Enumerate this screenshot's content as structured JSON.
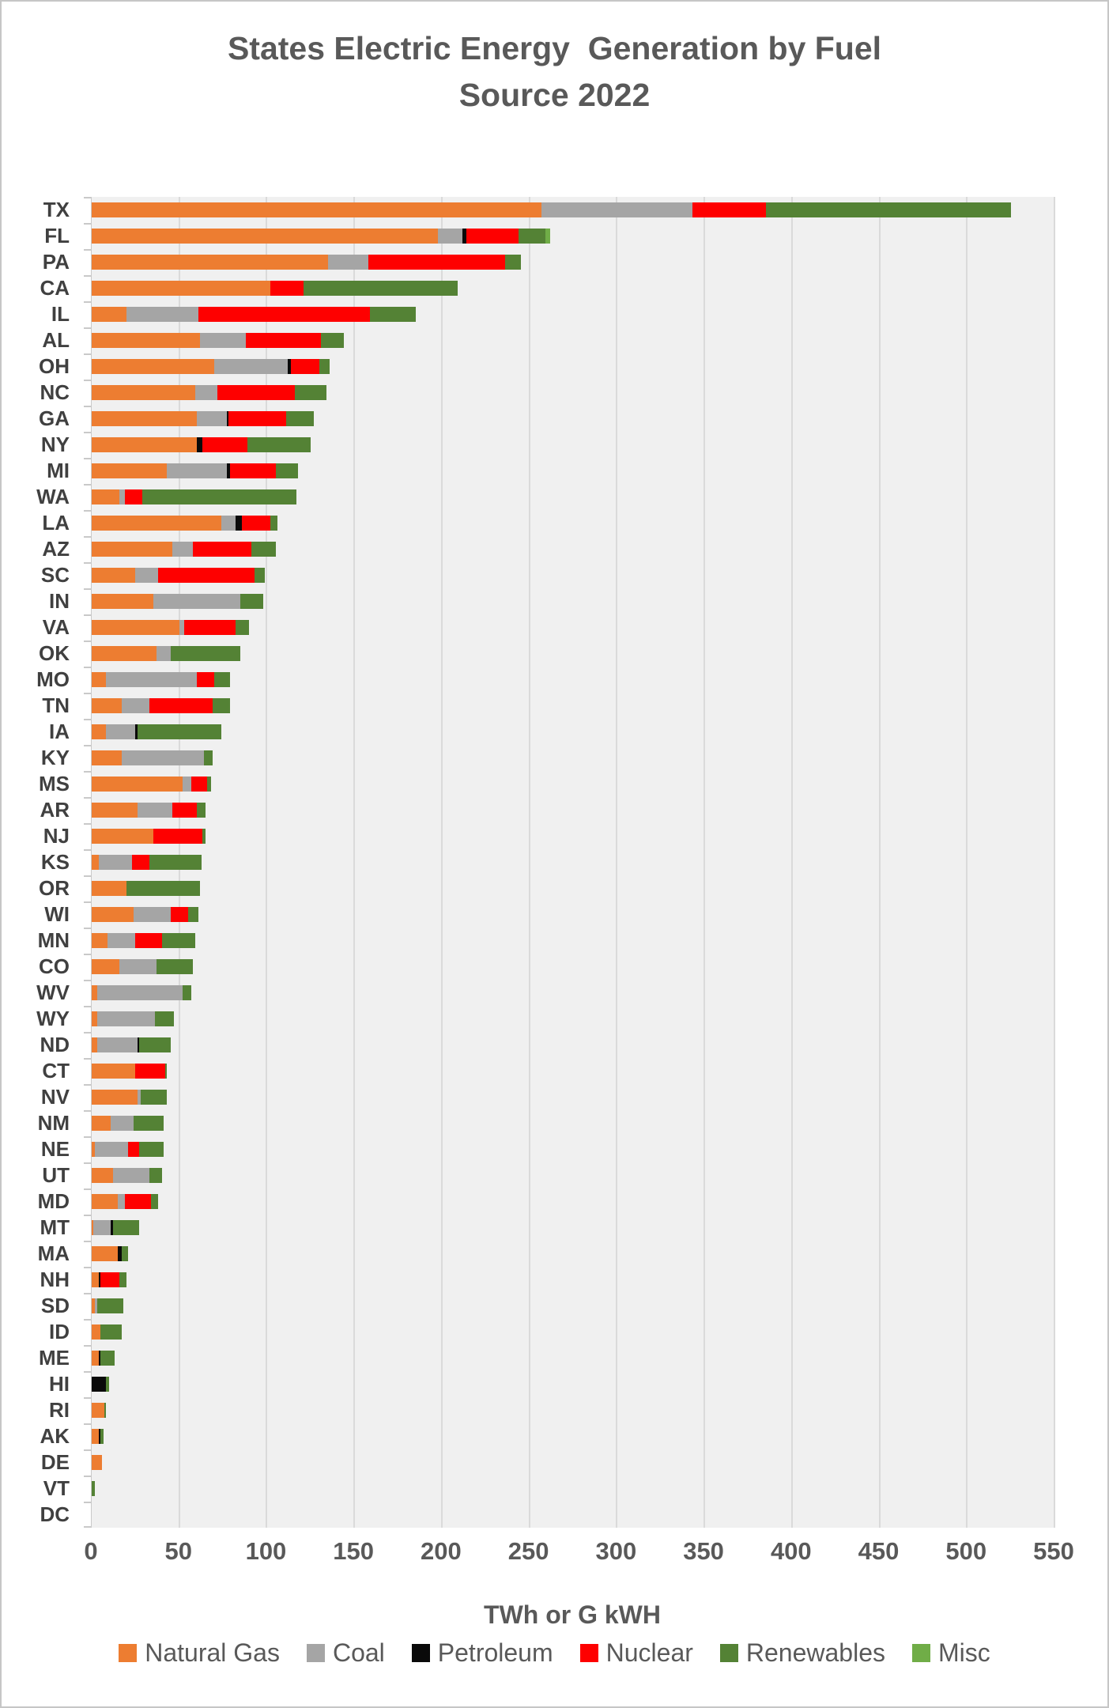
{
  "title": {
    "line1": "States Electric Energy  Generation by Fuel",
    "line2": "Source 2022"
  },
  "chart_data": {
    "type": "bar",
    "orientation": "horizontal",
    "stacked": true,
    "title": "States Electric Energy  Generation by Fuel Source 2022",
    "xlabel": "TWh or G kWH",
    "ylabel": "",
    "xlim": [
      0,
      550
    ],
    "x_ticks": [
      0,
      50,
      100,
      150,
      200,
      250,
      300,
      350,
      400,
      450,
      500,
      550
    ],
    "grid": true,
    "legend_position": "bottom",
    "series_names": [
      "Natural Gas",
      "Coal",
      "Petroleum",
      "Nuclear",
      "Renewables",
      "Misc"
    ],
    "series_colors": [
      "#ED7D31",
      "#A5A5A5",
      "#0A0A0A",
      "#FE0000",
      "#548235",
      "#70AD47"
    ],
    "rows": [
      {
        "state": "TX",
        "values": [
          257,
          86,
          0,
          42,
          140,
          0
        ]
      },
      {
        "state": "FL",
        "values": [
          198,
          14,
          2,
          30,
          15,
          3
        ]
      },
      {
        "state": "PA",
        "values": [
          135,
          23,
          0,
          78,
          9,
          0
        ]
      },
      {
        "state": "CA",
        "values": [
          102,
          0,
          0,
          19,
          88,
          0
        ]
      },
      {
        "state": "IL",
        "values": [
          20,
          41,
          0,
          98,
          26,
          0
        ]
      },
      {
        "state": "AL",
        "values": [
          62,
          26,
          0,
          43,
          13,
          0
        ]
      },
      {
        "state": "OH",
        "values": [
          70,
          42,
          2,
          16,
          6,
          0
        ]
      },
      {
        "state": "NC",
        "values": [
          59,
          13,
          0,
          44,
          18,
          0
        ]
      },
      {
        "state": "GA",
        "values": [
          60,
          17,
          1,
          33,
          16,
          0
        ]
      },
      {
        "state": "NY",
        "values": [
          60,
          0,
          3,
          26,
          36,
          0
        ]
      },
      {
        "state": "MI",
        "values": [
          43,
          34,
          2,
          26,
          13,
          0
        ]
      },
      {
        "state": "WA",
        "values": [
          16,
          3,
          0,
          10,
          88,
          0
        ]
      },
      {
        "state": "LA",
        "values": [
          74,
          8,
          4,
          16,
          4,
          0
        ]
      },
      {
        "state": "AZ",
        "values": [
          46,
          12,
          0,
          33,
          14,
          0
        ]
      },
      {
        "state": "SC",
        "values": [
          25,
          13,
          0,
          55,
          6,
          0
        ]
      },
      {
        "state": "IN",
        "values": [
          35,
          50,
          0,
          0,
          13,
          0
        ]
      },
      {
        "state": "VA",
        "values": [
          50,
          3,
          0,
          29,
          8,
          0
        ]
      },
      {
        "state": "OK",
        "values": [
          37,
          8,
          0,
          0,
          40,
          0
        ]
      },
      {
        "state": "MO",
        "values": [
          8,
          52,
          0,
          10,
          9,
          0
        ]
      },
      {
        "state": "TN",
        "values": [
          17,
          16,
          0,
          36,
          10,
          0
        ]
      },
      {
        "state": "IA",
        "values": [
          8,
          17,
          1,
          0,
          48,
          0
        ]
      },
      {
        "state": "KY",
        "values": [
          17,
          47,
          0,
          0,
          5,
          0
        ]
      },
      {
        "state": "MS",
        "values": [
          52,
          5,
          0,
          9,
          2,
          0
        ]
      },
      {
        "state": "AR",
        "values": [
          26,
          20,
          0,
          14,
          5,
          0
        ]
      },
      {
        "state": "NJ",
        "values": [
          35,
          0,
          0,
          28,
          2,
          0
        ]
      },
      {
        "state": "KS",
        "values": [
          4,
          19,
          0,
          10,
          30,
          0
        ]
      },
      {
        "state": "OR",
        "values": [
          20,
          0,
          0,
          0,
          42,
          0
        ]
      },
      {
        "state": "WI",
        "values": [
          24,
          21,
          0,
          10,
          6,
          0
        ]
      },
      {
        "state": "MN",
        "values": [
          9,
          16,
          0,
          15,
          19,
          0
        ]
      },
      {
        "state": "CO",
        "values": [
          16,
          21,
          0,
          0,
          21,
          0
        ]
      },
      {
        "state": "WV",
        "values": [
          3,
          49,
          0,
          0,
          5,
          0
        ]
      },
      {
        "state": "WY",
        "values": [
          3,
          33,
          0,
          0,
          11,
          0
        ]
      },
      {
        "state": "ND",
        "values": [
          3,
          23,
          1,
          0,
          18,
          0
        ]
      },
      {
        "state": "CT",
        "values": [
          25,
          0,
          0,
          17,
          1,
          0
        ]
      },
      {
        "state": "NV",
        "values": [
          26,
          2,
          0,
          0,
          15,
          0
        ]
      },
      {
        "state": "NM",
        "values": [
          11,
          13,
          0,
          0,
          17,
          0
        ]
      },
      {
        "state": "NE",
        "values": [
          2,
          19,
          0,
          6,
          14,
          0
        ]
      },
      {
        "state": "UT",
        "values": [
          12,
          21,
          0,
          0,
          7,
          0
        ]
      },
      {
        "state": "MD",
        "values": [
          15,
          4,
          0,
          15,
          4,
          0
        ]
      },
      {
        "state": "MT",
        "values": [
          1,
          10,
          1,
          0,
          15,
          0
        ]
      },
      {
        "state": "MA",
        "values": [
          15,
          0,
          2,
          0,
          4,
          0
        ]
      },
      {
        "state": "NH",
        "values": [
          4,
          0,
          1,
          11,
          4,
          0
        ]
      },
      {
        "state": "SD",
        "values": [
          2,
          1,
          0,
          0,
          15,
          0
        ]
      },
      {
        "state": "ID",
        "values": [
          5,
          0,
          0,
          0,
          12,
          0
        ]
      },
      {
        "state": "ME",
        "values": [
          4,
          0,
          1,
          0,
          8,
          0
        ]
      },
      {
        "state": "HI",
        "values": [
          0,
          0,
          8,
          0,
          2,
          0
        ]
      },
      {
        "state": "RI",
        "values": [
          7,
          0,
          0,
          0,
          1,
          0
        ]
      },
      {
        "state": "AK",
        "values": [
          4,
          0,
          1,
          0,
          2,
          0
        ]
      },
      {
        "state": "DE",
        "values": [
          6,
          0,
          0,
          0,
          0,
          0
        ]
      },
      {
        "state": "VT",
        "values": [
          0,
          0,
          0,
          0,
          2,
          0
        ]
      },
      {
        "state": "DC",
        "values": [
          0,
          0,
          0,
          0,
          0,
          0
        ]
      }
    ]
  },
  "x_axis_title": "TWh or G kWH",
  "legend": {
    "items": [
      {
        "label": "Natural Gas",
        "color": "#ED7D31"
      },
      {
        "label": "Coal",
        "color": "#A5A5A5"
      },
      {
        "label": "Petroleum",
        "color": "#0A0A0A"
      },
      {
        "label": "Nuclear",
        "color": "#FE0000"
      },
      {
        "label": "Renewables",
        "color": "#548235"
      },
      {
        "label": "Misc",
        "color": "#70AD47"
      }
    ]
  },
  "colors": {
    "plot_background": "#F0F0F0",
    "gridline": "#DADADA",
    "title_text": "#595959",
    "axis_text": "#595959",
    "category_text": "#404040",
    "page_border": "#C6C6C6"
  }
}
